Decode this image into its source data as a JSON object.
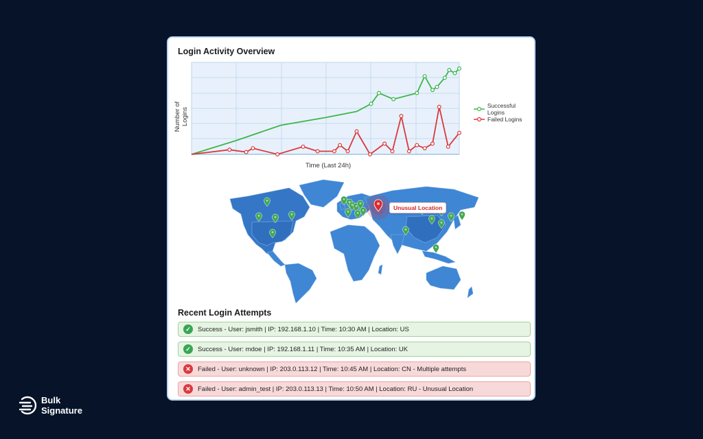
{
  "chart": {
    "title": "Login Activity Overview",
    "ylabel": "Number of Logins",
    "xlabel": "Time (Last 24h)"
  },
  "chart_data": {
    "type": "line",
    "title": "Login Activity Overview",
    "xlabel": "Time (Last 24h)",
    "ylabel": "Number of Logins",
    "xlim": [
      0,
      24
    ],
    "ylim": [
      0,
      60
    ],
    "grid": true,
    "legend_position": "right",
    "series": [
      {
        "name": "Successful Logins",
        "color": "#3cb54a",
        "points": [
          [
            0,
            0
          ],
          [
            4,
            9
          ],
          [
            8,
            19
          ],
          [
            12,
            24
          ],
          [
            14.8,
            28
          ],
          [
            16.1,
            33
          ],
          [
            16.8,
            40
          ],
          [
            18.1,
            36
          ],
          [
            20.2,
            40
          ],
          [
            20.9,
            51
          ],
          [
            21.6,
            42
          ],
          [
            22.0,
            44
          ],
          [
            22.7,
            50
          ],
          [
            23.1,
            55
          ],
          [
            23.6,
            53
          ],
          [
            24,
            56
          ]
        ],
        "markers_from_index": 5
      },
      {
        "name": "Failed Logins",
        "color": "#d9383a",
        "points": [
          [
            0,
            0
          ],
          [
            3.4,
            3
          ],
          [
            4.9,
            1.5
          ],
          [
            5.5,
            4
          ],
          [
            7.7,
            0
          ],
          [
            10.0,
            5
          ],
          [
            11.3,
            2
          ],
          [
            12.8,
            2
          ],
          [
            13.3,
            6
          ],
          [
            14.0,
            2
          ],
          [
            14.8,
            15
          ],
          [
            16.0,
            0
          ],
          [
            17.3,
            7
          ],
          [
            18.0,
            2
          ],
          [
            18.8,
            25
          ],
          [
            19.5,
            2
          ],
          [
            20.2,
            6
          ],
          [
            20.9,
            4
          ],
          [
            21.6,
            7
          ],
          [
            22.2,
            31
          ],
          [
            23.0,
            5
          ],
          [
            24,
            14
          ]
        ]
      }
    ]
  },
  "legend": {
    "items": [
      {
        "label": "Successful Logins",
        "color": "#3cb54a"
      },
      {
        "label": "Failed Logins",
        "color": "#d9383a"
      }
    ]
  },
  "map": {
    "alert_label": "Unusual Location",
    "land_color": "#3f86d4",
    "pin_color": "#43a854",
    "alert_color": "#e0262c"
  },
  "attempts": {
    "title": "Recent Login Attempts",
    "items": [
      {
        "status": "success",
        "icon": "check-circle-icon",
        "text": "Success - User: jsmith | IP: 192.168.1.10 | Time: 10:30 AM | Location: US"
      },
      {
        "status": "success",
        "icon": "check-circle-icon",
        "text": "Success - User: mdoe | IP: 192.168.1.11 | Time: 10:35 AM | Location: UK"
      },
      {
        "status": "failed",
        "icon": "x-circle-icon",
        "text": "Failed - User: unknown | IP: 203.0.113.12 | Time: 10:45 AM | Location: CN - Multiple attempts"
      },
      {
        "status": "failed",
        "icon": "x-circle-icon",
        "text": "Failed - User: admin_test | IP: 203.0.113.13 | Time: 10:50 AM | Location: RU - Unusual Location"
      }
    ]
  },
  "brand": {
    "line1": "Bulk",
    "line2": "Signature"
  },
  "icons": {
    "check": "✓",
    "x": "✕"
  }
}
